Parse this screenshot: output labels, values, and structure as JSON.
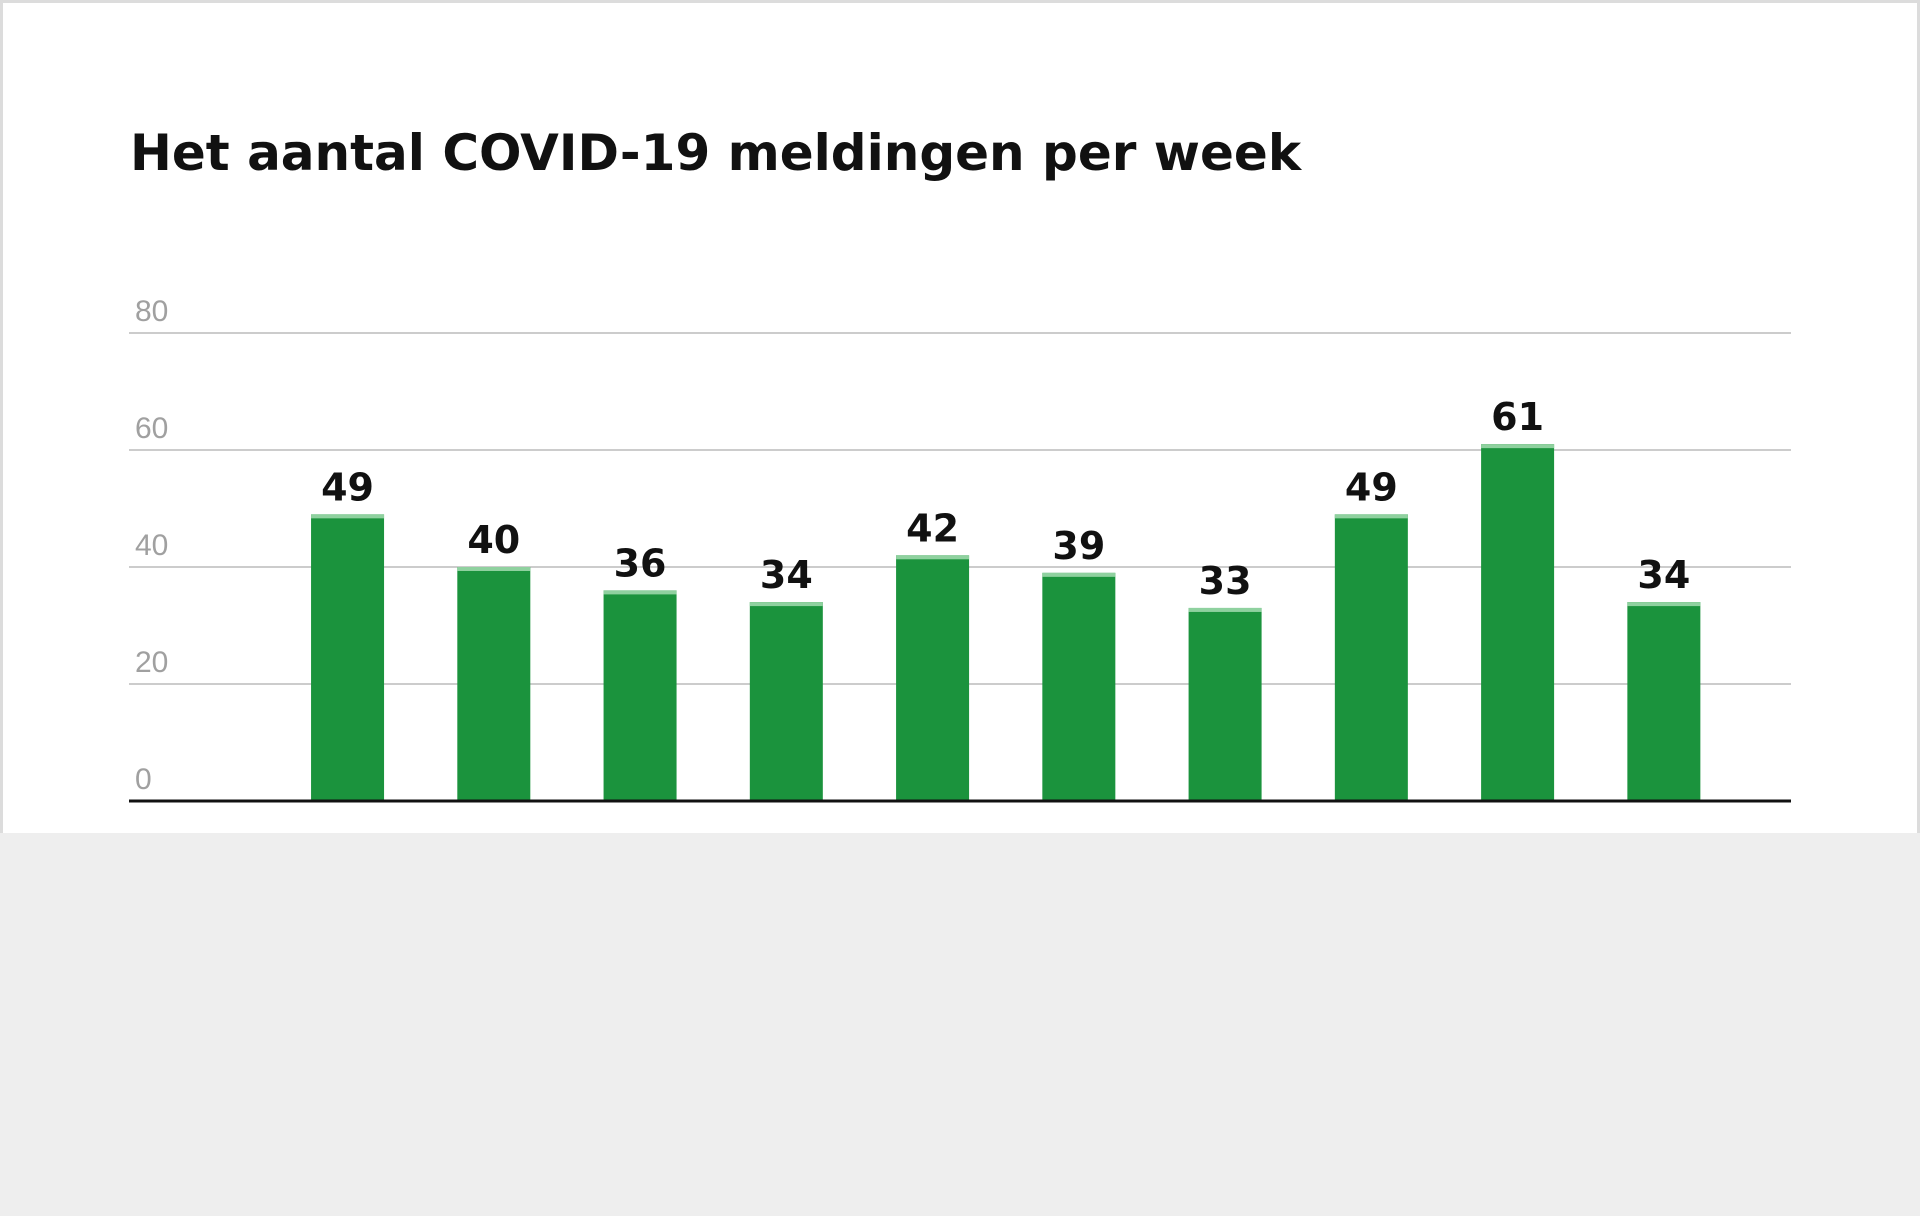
{
  "chart_data": {
    "type": "bar",
    "title": "Het aantal COVID-19 meldingen per week",
    "categories": [
      null,
      null,
      null,
      null,
      null,
      null,
      null,
      null,
      null,
      null
    ],
    "values": [
      49,
      40,
      36,
      34,
      42,
      39,
      33,
      49,
      61,
      34
    ],
    "color": "#1b933d",
    "ylim": [
      0,
      80
    ],
    "yticks": [
      0,
      20,
      40,
      60,
      80
    ],
    "grid": true
  }
}
